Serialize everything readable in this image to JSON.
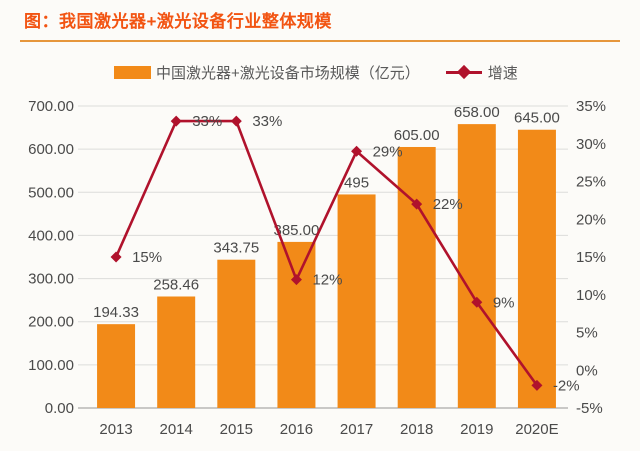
{
  "title": "图：我国激光器+激光设备行业整体规模",
  "legend": [
    {
      "label": "中国激光器+激光设备市场规模（亿元）",
      "type": "bar"
    },
    {
      "label": "增速",
      "type": "line"
    }
  ],
  "colors": {
    "bar": "#F28A18",
    "line": "#B0122C",
    "title": "#F25412",
    "rule": "#E6963C",
    "grid": "#DCDCDA",
    "axis_line": "#B8B8B6",
    "axis_text": "#4A4A4A",
    "label_text": "#3E3E3E",
    "background": "#FCFBF8"
  },
  "chart_data": {
    "type": "bar+line",
    "title": "图：我国激光器+激光设备行业整体规模",
    "categories": [
      "2013",
      "2014",
      "2015",
      "2016",
      "2017",
      "2018",
      "2019",
      "2020E"
    ],
    "series": [
      {
        "name": "中国激光器+激光设备市场规模（亿元）",
        "type": "bar",
        "axis": "left",
        "values": [
          194.33,
          258.46,
          343.75,
          385.0,
          495,
          605.0,
          658.0,
          645.0
        ],
        "labels": [
          "194.33",
          "258.46",
          "343.75",
          "385.00",
          "495",
          "605.00",
          "658.00",
          "645.00"
        ]
      },
      {
        "name": "增速",
        "type": "line",
        "axis": "right",
        "values": [
          15,
          33,
          33,
          12,
          29,
          22,
          9,
          -2
        ],
        "labels": [
          "15%",
          "33%",
          "33%",
          "12%",
          "29%",
          "22%",
          "9%",
          "-2%"
        ]
      }
    ],
    "left_axis": {
      "min": 0,
      "max": 700,
      "step": 100,
      "tick_labels": [
        "700.00",
        "600.00",
        "500.00",
        "400.00",
        "300.00",
        "200.00",
        "100.00",
        "0.00"
      ]
    },
    "right_axis": {
      "min": -5,
      "max": 35,
      "step": 5,
      "tick_labels": [
        "35%",
        "30%",
        "25%",
        "20%",
        "15%",
        "10%",
        "5%",
        "0%",
        "-5%"
      ]
    },
    "grid": "horizontal",
    "legend_position": "top"
  }
}
